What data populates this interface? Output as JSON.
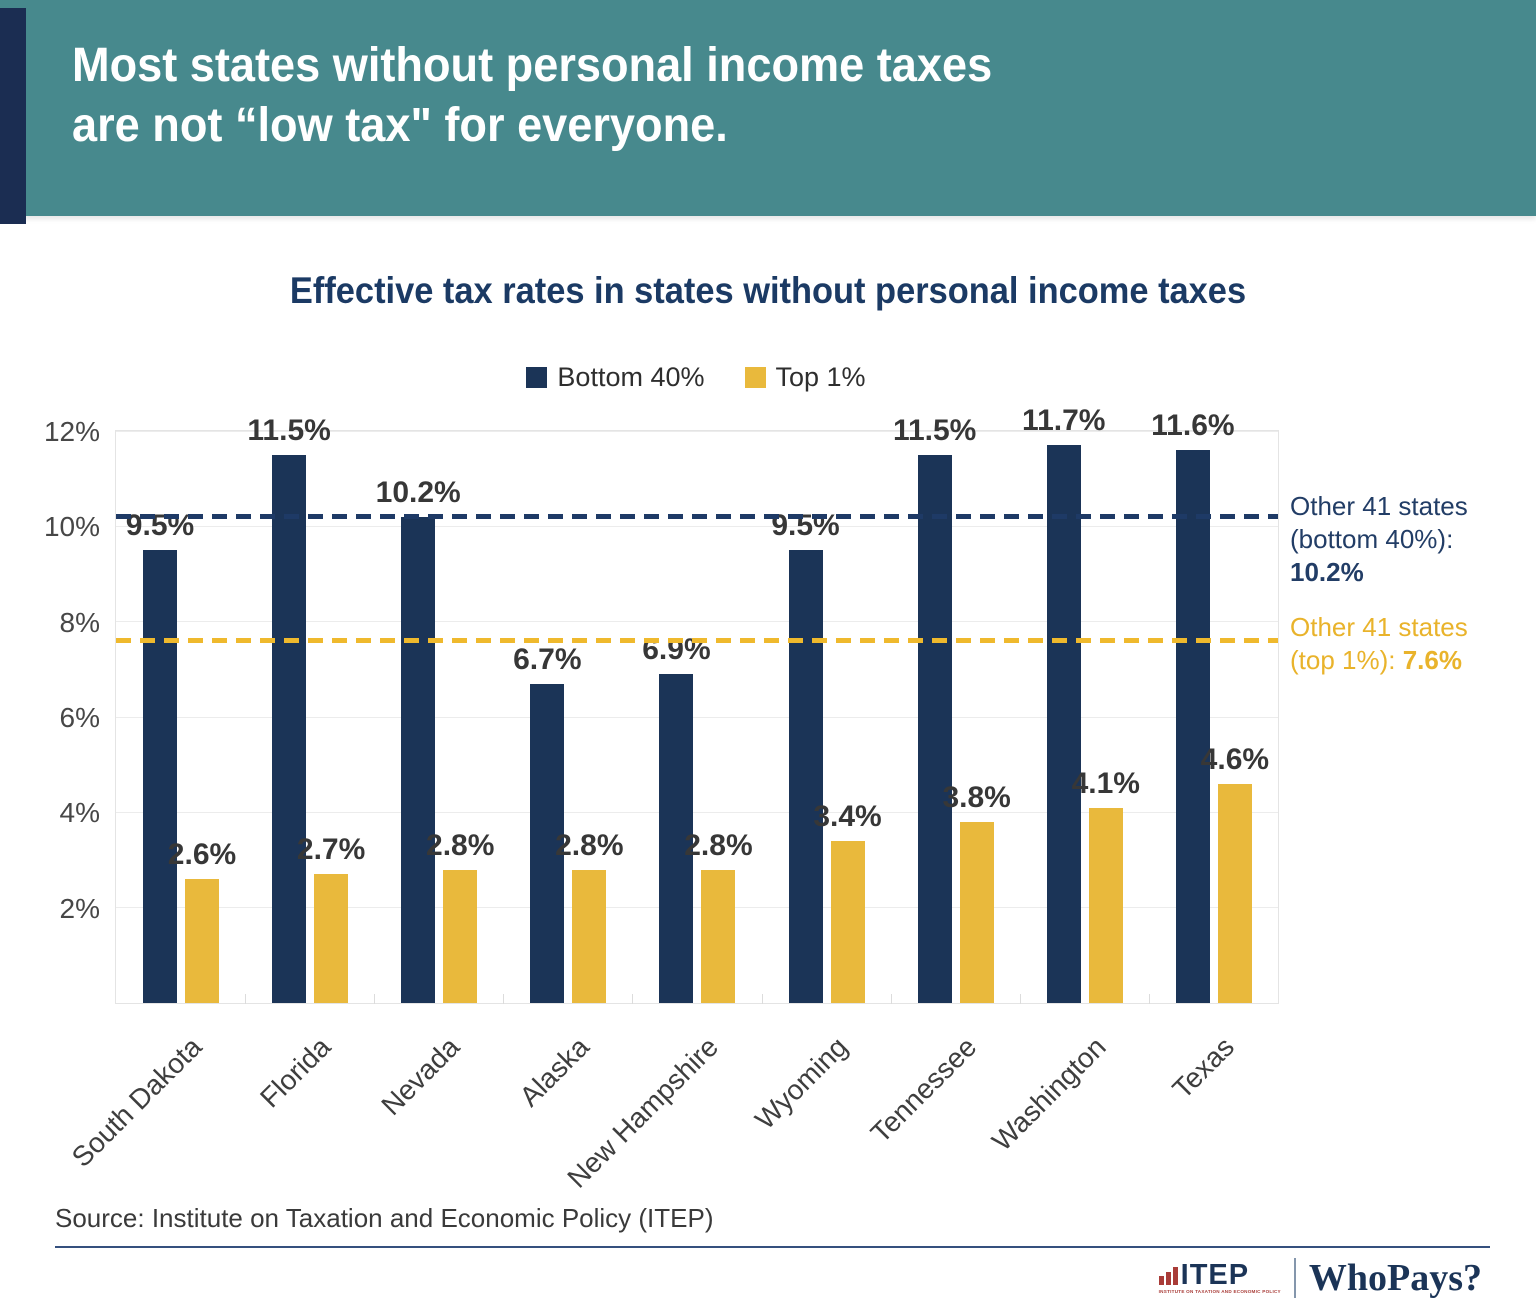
{
  "header": {
    "title_line1": "Most states without personal income taxes",
    "title_line2": "are not “low tax\" for everyone."
  },
  "chart": {
    "title": "Effective tax rates in states without personal income taxes",
    "legend": [
      {
        "label": "Bottom 40%",
        "color": "#1B3457"
      },
      {
        "label": "Top 1%",
        "color": "#E9B93C"
      }
    ],
    "annotations": {
      "bottom40": {
        "line1": "Other 41 states",
        "line2_label": "(bottom 40%): ",
        "line2_value": "10.2%"
      },
      "top1": {
        "line1": "Other 41 states",
        "line2_label": "(top 1%): ",
        "line2_value": "7.6%"
      }
    }
  },
  "chart_data": {
    "type": "bar",
    "title": "Effective tax rates in states without personal income taxes",
    "categories": [
      "South Dakota",
      "Florida",
      "Nevada",
      "Alaska",
      "New Hampshire",
      "Wyoming",
      "Tennessee",
      "Washington",
      "Texas"
    ],
    "series": [
      {
        "name": "Bottom 40%",
        "color": "#1B3457",
        "values": [
          9.5,
          11.5,
          10.2,
          6.7,
          6.9,
          9.5,
          11.5,
          11.7,
          11.6
        ]
      },
      {
        "name": "Top 1%",
        "color": "#E9B93C",
        "values": [
          2.6,
          2.7,
          2.8,
          2.8,
          2.8,
          3.4,
          3.8,
          4.1,
          4.6
        ]
      }
    ],
    "value_label_suffix": "%",
    "xlabel": "",
    "ylabel": "",
    "ylim": [
      0,
      12
    ],
    "y_ticks": [
      {
        "value": 2,
        "label": "2%"
      },
      {
        "value": 4,
        "label": "4%"
      },
      {
        "value": 6,
        "label": "6%"
      },
      {
        "value": 8,
        "label": "8%"
      },
      {
        "value": 10,
        "label": "10%"
      },
      {
        "value": 12,
        "label": "12%"
      }
    ],
    "grid": "horizontal",
    "legend_position": "top-center",
    "reference_lines": [
      {
        "value": 10.2,
        "color": "#1E3A66",
        "style": "dashed",
        "label": "Other 41 states (bottom 40%): 10.2%"
      },
      {
        "value": 7.6,
        "color": "#EFB92D",
        "style": "dashed",
        "label": "Other 41 states (top 1%): 7.6%"
      }
    ]
  },
  "colors": {
    "banner_teal": "#47898D",
    "banner_accent_navy": "#1B2D52",
    "series_navy": "#1B3457",
    "series_gold": "#E9B93C",
    "title_navy": "#1B3A64"
  },
  "source": "Source: Institute on Taxation and Economic Policy (ITEP)",
  "footer": {
    "itep_word": "ITEP",
    "itep_tagline": "INSTITUTE ON TAXATION AND ECONOMIC POLICY",
    "whopays": "WhoPays?"
  }
}
